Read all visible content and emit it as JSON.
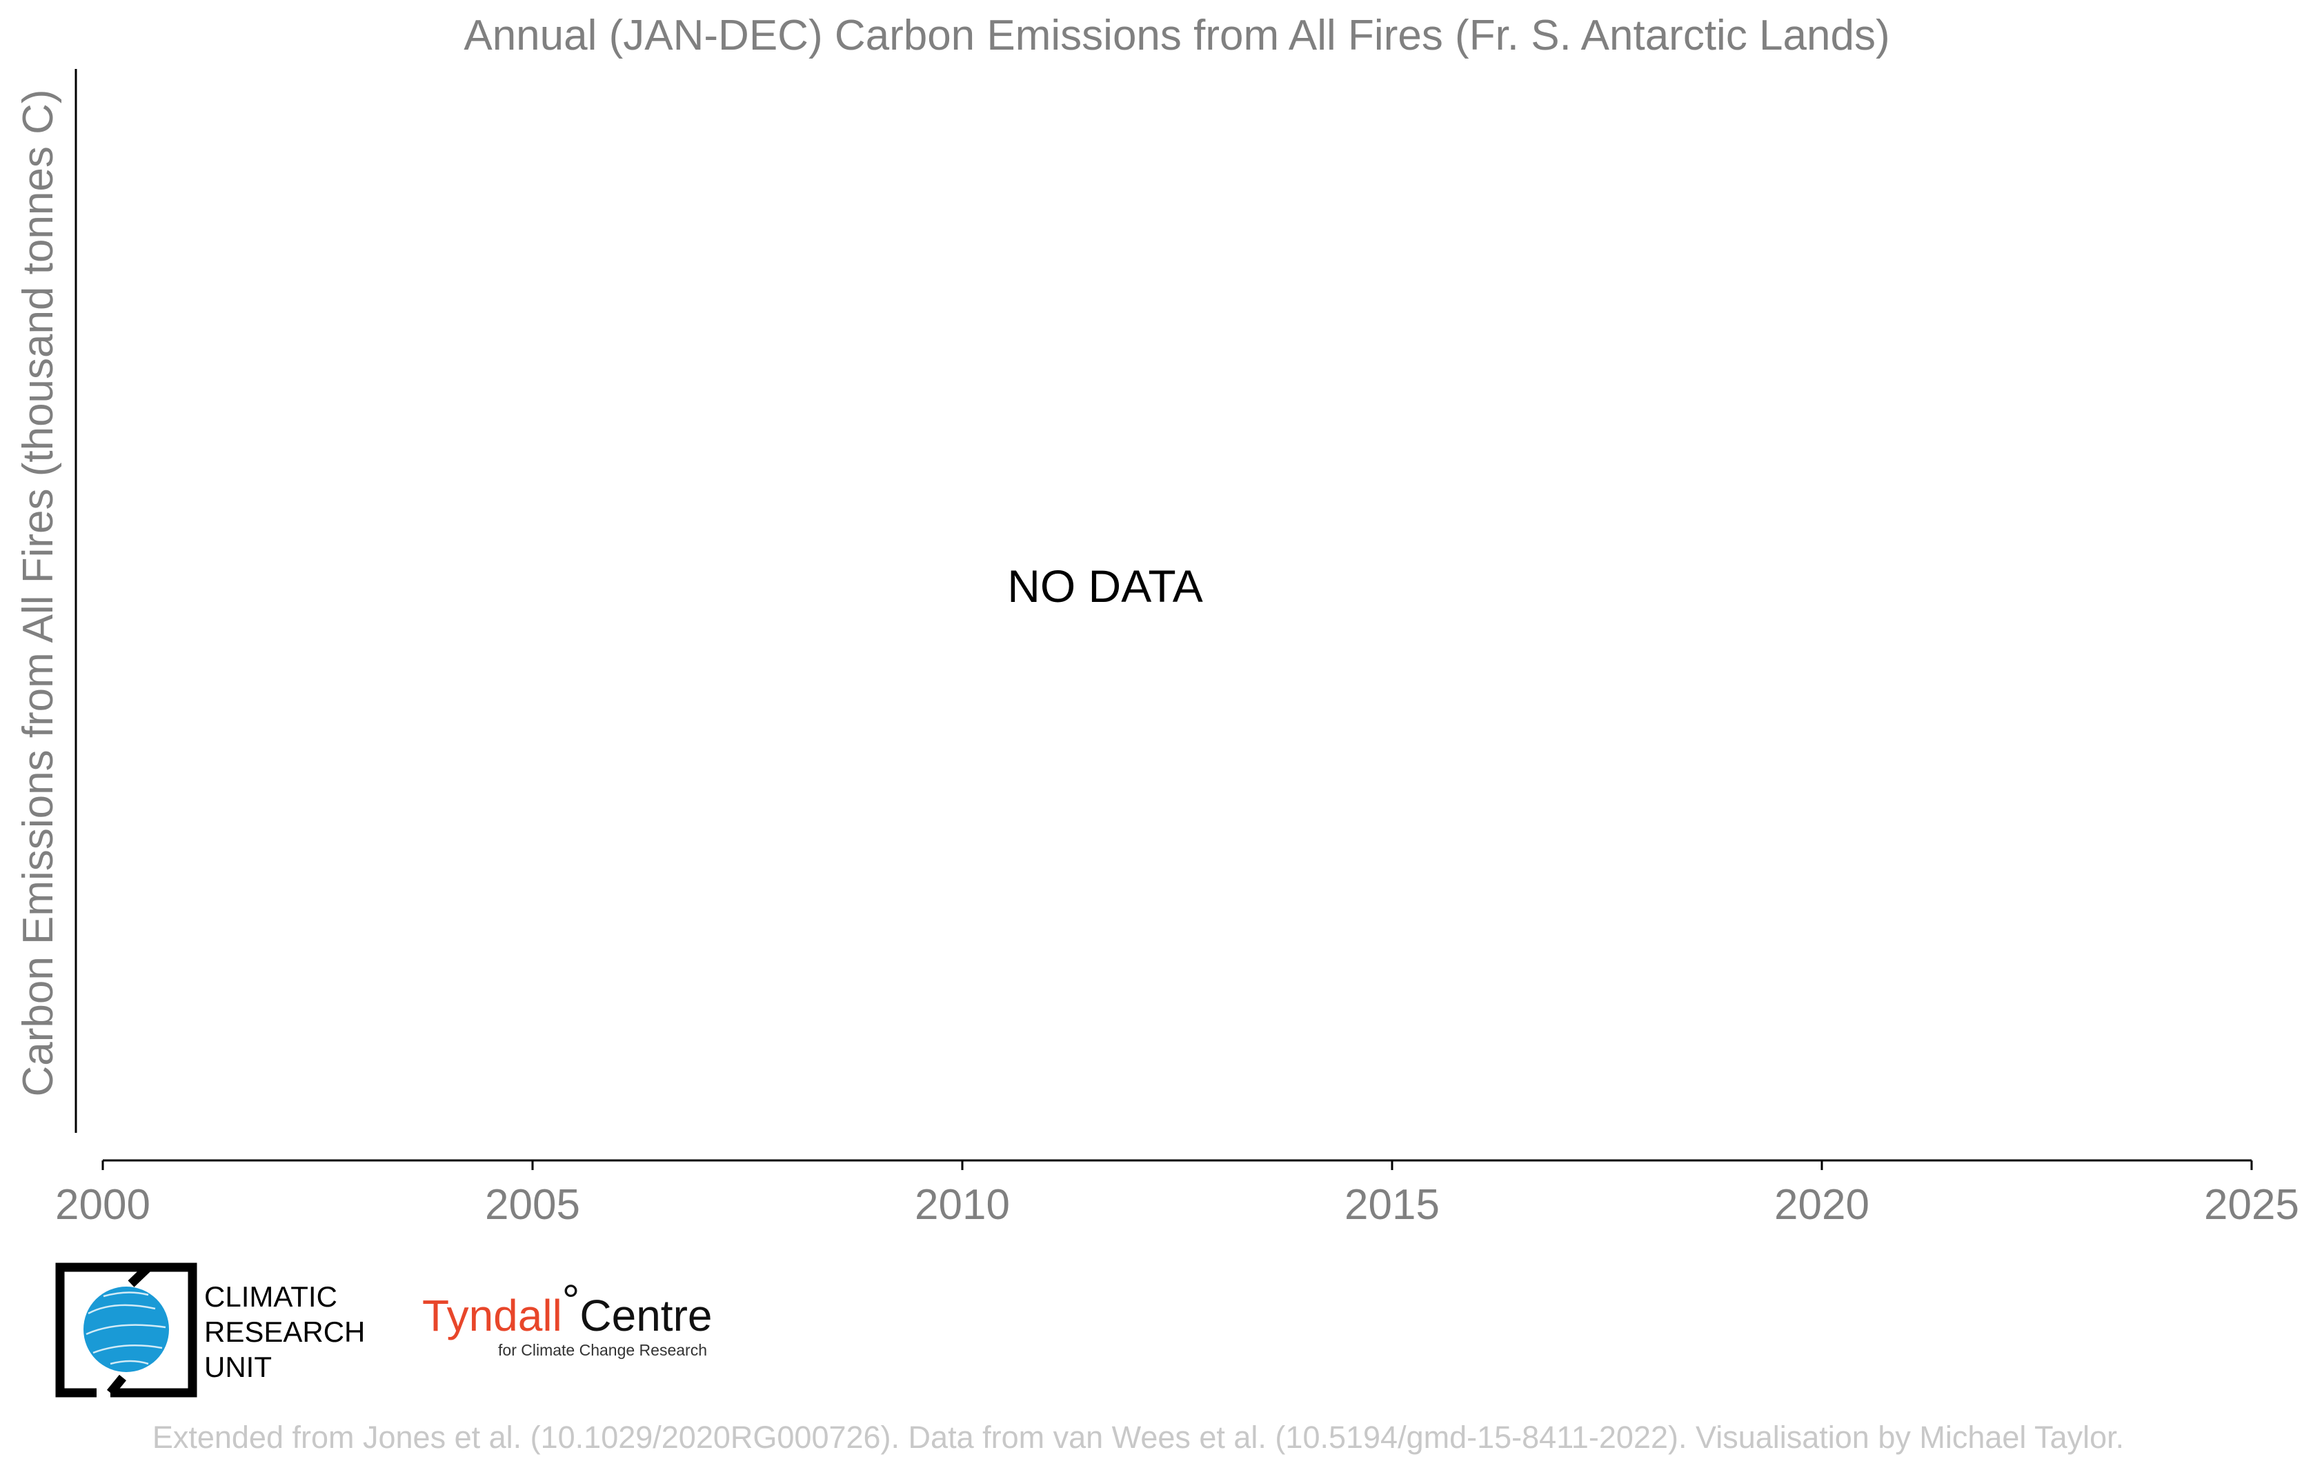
{
  "chart_data": {
    "type": "line",
    "title": "Annual (JAN-DEC) Carbon Emissions from All Fires (Fr. S. Antarctic Lands)",
    "xlabel": "",
    "ylabel": "Carbon Emissions from All Fires (thousand tonnes C)",
    "xlim": [
      2000,
      2025
    ],
    "x_ticks": [
      2000,
      2005,
      2010,
      2015,
      2020,
      2025
    ],
    "x_tick_labels": [
      "2000",
      "2005",
      "2010",
      "2015",
      "2020",
      "2025"
    ],
    "series": [],
    "annotation": "NO DATA",
    "grid": false
  },
  "logos": {
    "cru": {
      "lines": [
        "CLIMATIC",
        "RESEARCH",
        "UNIT"
      ],
      "globe_color": "#1a9ad6"
    },
    "tyndall": {
      "name": "Tyndall",
      "degree": "°",
      "centre": "Centre",
      "subtitle": "for Climate Change Research",
      "accent_color": "#e8462a"
    }
  },
  "footer": "Extended from Jones et al. (10.1029/2020RG000726). Data from van Wees et al. (10.5194/gmd-15-8411-2022). Visualisation by Michael Taylor.",
  "colors": {
    "axis": "#000000",
    "text_gray": "#808080",
    "footer_gray": "#c8c8c8"
  }
}
